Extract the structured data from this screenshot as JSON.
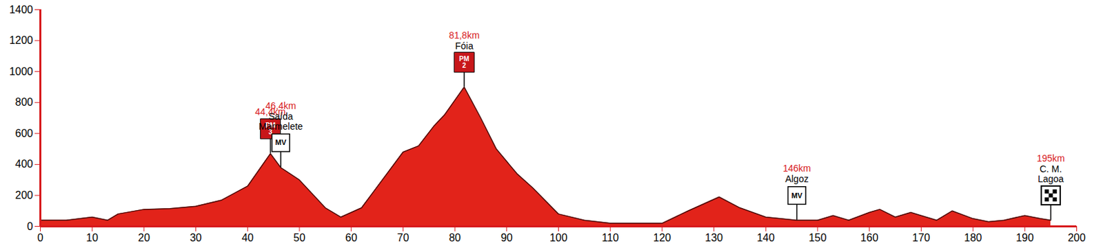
{
  "chart_data": {
    "type": "area",
    "color": "#e2231a",
    "x": [
      0,
      5,
      10,
      13,
      15,
      20,
      25,
      30,
      35,
      40,
      44.4,
      46.4,
      50,
      55,
      58,
      62,
      66,
      70,
      73,
      76,
      78,
      81.8,
      85,
      88,
      92,
      95,
      100,
      105,
      110,
      115,
      120,
      125,
      131,
      135,
      140,
      146,
      150,
      153,
      156,
      160,
      162,
      165,
      168,
      170,
      173,
      176,
      180,
      183,
      186,
      190,
      193,
      195
    ],
    "values": [
      40,
      40,
      60,
      40,
      80,
      110,
      115,
      130,
      170,
      260,
      470,
      380,
      300,
      120,
      60,
      120,
      300,
      480,
      520,
      650,
      720,
      900,
      700,
      500,
      340,
      250,
      80,
      40,
      20,
      20,
      20,
      100,
      190,
      120,
      60,
      40,
      40,
      70,
      40,
      90,
      110,
      60,
      90,
      70,
      40,
      100,
      50,
      30,
      40,
      70,
      50,
      40
    ],
    "xlim": [
      0,
      200
    ],
    "ylim": [
      0,
      1400
    ],
    "xticks": [
      0,
      10,
      20,
      30,
      40,
      50,
      60,
      70,
      80,
      90,
      100,
      110,
      120,
      130,
      140,
      150,
      160,
      170,
      180,
      190,
      200
    ],
    "yticks": [
      0,
      200,
      400,
      600,
      800,
      1000,
      1200,
      1400
    ],
    "annotations": [
      {
        "x": 44.4,
        "distance_label": "44,4km",
        "marker": "climb",
        "sign_lines": [
          "PM",
          "3"
        ]
      },
      {
        "x": 46.4,
        "distance_label": "46,4km",
        "name_lines": [
          "Saída",
          "Marmelete"
        ],
        "marker": "sprint",
        "sign_lines": [
          "MV"
        ]
      },
      {
        "x": 81.8,
        "distance_label": "81,8km",
        "name_lines": [
          "Fóia"
        ],
        "marker": "climb",
        "sign_lines": [
          "PM",
          "2"
        ]
      },
      {
        "x": 146,
        "distance_label": "146km",
        "name_lines": [
          "Algoz"
        ],
        "marker": "sprint",
        "sign_lines": [
          "MV"
        ]
      },
      {
        "x": 195,
        "distance_label": "195km",
        "name_lines": [
          "C. M.",
          "Lagoa"
        ],
        "marker": "finish"
      }
    ]
  }
}
